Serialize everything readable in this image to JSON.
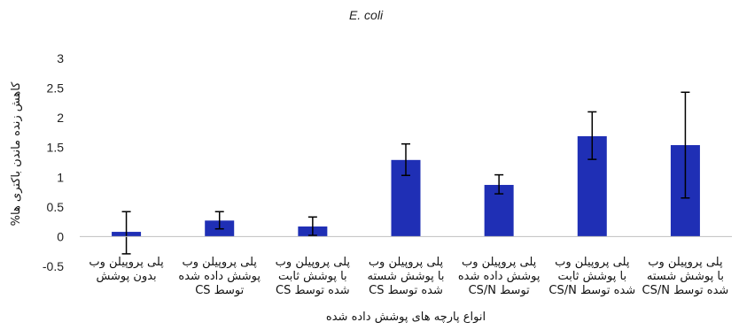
{
  "chart_data": {
    "type": "bar",
    "title": "E. coli",
    "xlabel": "انواع پارچه های پوشش داده شده",
    "ylabel": "کاهش زنده ماندن باکتری ها%",
    "ylim": [
      -0.5,
      3
    ],
    "yticks": [
      "3",
      "2.5",
      "2",
      "1.5",
      "1",
      "0.5",
      "0",
      "-0.5"
    ],
    "ytick_values": [
      3,
      2.5,
      2,
      1.5,
      1,
      0.5,
      0,
      -0.5
    ],
    "bar_color": "#1f2fb5",
    "categories": [
      [
        "پلی پروپیلن وب",
        "بدون پوشش"
      ],
      [
        "پلی پروپیلن وب",
        "پوشش داده شده",
        "توسط CS"
      ],
      [
        "پلی پروپیلن وب",
        "با پوشش ثابت",
        "شده توسط CS"
      ],
      [
        "پلی پروپیلن وب",
        "با پوشش شسته",
        "شده توسط CS"
      ],
      [
        "پلی پروپیلن وب",
        "پوشش داده شده",
        "توسط CS/N"
      ],
      [
        "پلی پروپیلن وب",
        "با پوشش ثابت",
        "شده توسط CS/N"
      ],
      [
        "پلی پروپیلن وب",
        "با پوشش شسته",
        "شده توسط CS/N"
      ]
    ],
    "values": [
      0.08,
      0.27,
      0.17,
      1.29,
      0.87,
      1.69,
      1.54
    ],
    "error_low": [
      -0.29,
      0.13,
      0.02,
      1.03,
      0.72,
      1.3,
      0.65
    ],
    "error_high": [
      0.42,
      0.42,
      0.33,
      1.56,
      1.04,
      2.1,
      2.43
    ]
  }
}
